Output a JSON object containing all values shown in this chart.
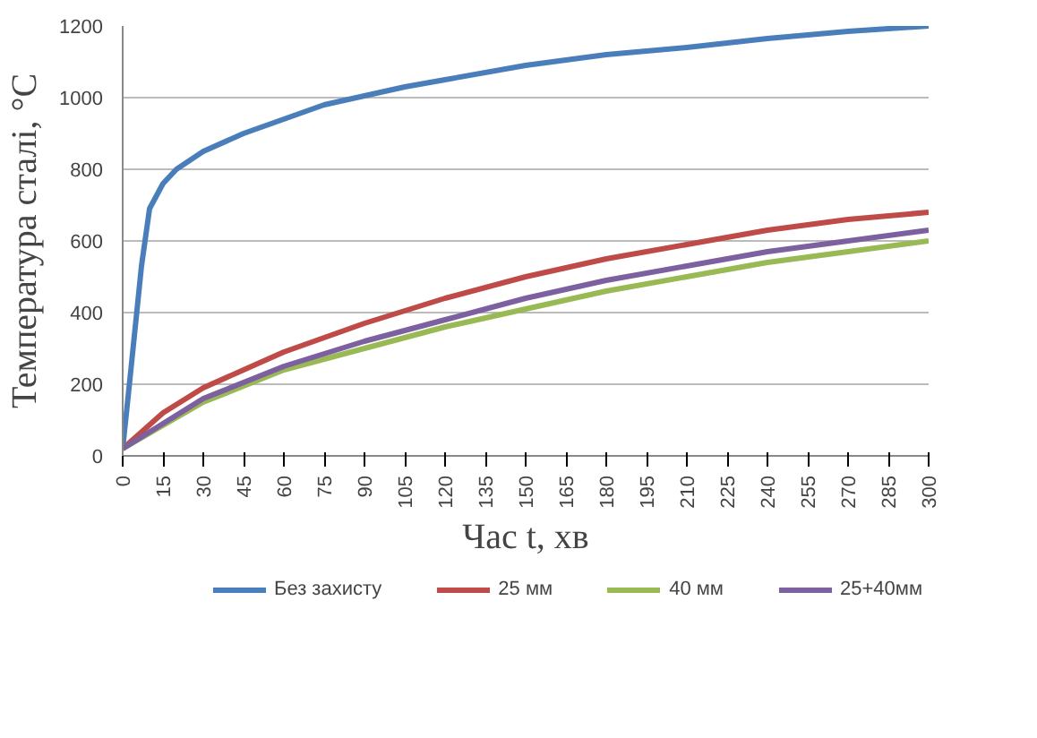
{
  "chart_data": {
    "type": "line",
    "xlabel": "Час t, хв",
    "ylabel": "Температура сталі, °С",
    "xlim": [
      0,
      300
    ],
    "xticks": [
      0,
      15,
      30,
      45,
      60,
      75,
      90,
      105,
      120,
      135,
      150,
      165,
      180,
      195,
      210,
      225,
      240,
      255,
      270,
      285,
      300
    ],
    "ylim": [
      0,
      1200
    ],
    "yticks": [
      0,
      200,
      400,
      600,
      800,
      1000,
      1200
    ],
    "grid": "y",
    "legend": "bottom",
    "marker": "none",
    "line_style": "solid",
    "series": [
      {
        "name": "Без захисту",
        "color": "#4a7ebb",
        "x": [
          0,
          2.5,
          7,
          10,
          15,
          20,
          30,
          45,
          60,
          75,
          90,
          105,
          120,
          150,
          180,
          210,
          240,
          270,
          300
        ],
        "values": [
          20,
          200,
          530,
          690,
          760,
          800,
          850,
          900,
          940,
          980,
          1005,
          1030,
          1050,
          1090,
          1120,
          1140,
          1165,
          1185,
          1200
        ]
      },
      {
        "name": "25 мм",
        "color": "#be4b48",
        "x": [
          0,
          15,
          30,
          45,
          60,
          90,
          120,
          150,
          180,
          210,
          240,
          270,
          300
        ],
        "values": [
          20,
          120,
          190,
          240,
          290,
          370,
          440,
          500,
          550,
          590,
          630,
          660,
          680
        ]
      },
      {
        "name": "40 мм",
        "color": "#98b954",
        "x": [
          0,
          30,
          60,
          90,
          120,
          150,
          180,
          210,
          240,
          270,
          300
        ],
        "values": [
          20,
          150,
          240,
          300,
          360,
          410,
          460,
          500,
          540,
          570,
          600
        ]
      },
      {
        "name": "25+40мм",
        "color": "#7d60a0",
        "x": [
          0,
          30,
          60,
          90,
          120,
          150,
          180,
          210,
          240,
          270,
          300
        ],
        "values": [
          20,
          160,
          250,
          320,
          380,
          440,
          490,
          530,
          570,
          600,
          630
        ]
      }
    ]
  }
}
